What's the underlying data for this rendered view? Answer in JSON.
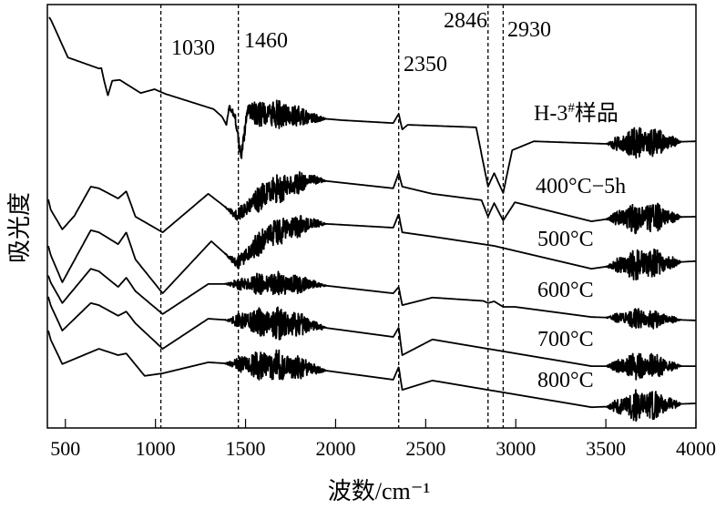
{
  "chart_data": {
    "type": "line",
    "title": "",
    "xlabel": "波数/cm⁻¹",
    "ylabel": "吸光度",
    "xlim": [
      400,
      4000
    ],
    "ylim": [
      0,
      100
    ],
    "xticks": [
      500,
      1000,
      1500,
      2000,
      2500,
      3000,
      3500,
      4000
    ],
    "xtick_labels": [
      "500",
      "1000",
      "1500",
      "2000",
      "2500",
      "3000",
      "3500",
      "4000"
    ],
    "grid": false,
    "reference_lines": [
      {
        "x": 1030,
        "label": "1030"
      },
      {
        "x": 1460,
        "label": "1460"
      },
      {
        "x": 2350,
        "label": "2350"
      },
      {
        "x": 2846,
        "label": "2846"
      },
      {
        "x": 2930,
        "label": "2930"
      }
    ],
    "series": [
      {
        "name": "H-3#样品",
        "label_parts": [
          "H-3",
          "#",
          "样品"
        ],
        "noise": [
          [
            1380,
            1950,
            3.5
          ],
          [
            3500,
            3920,
            4
          ]
        ],
        "points": [
          [
            410,
            97
          ],
          [
            423,
            96.1
          ],
          [
            514,
            87.5
          ],
          [
            686,
            84.9
          ],
          [
            700,
            85
          ],
          [
            715,
            82
          ],
          [
            736,
            78.5
          ],
          [
            760,
            82
          ],
          [
            802,
            82.2
          ],
          [
            918,
            79.1
          ],
          [
            995,
            80.0
          ],
          [
            1055,
            78.9
          ],
          [
            1323,
            75.3
          ],
          [
            1370,
            73.5
          ],
          [
            1394,
            71.6
          ],
          [
            1409,
            75.9
          ],
          [
            1440,
            74
          ],
          [
            1475,
            63.9
          ],
          [
            1510,
            74.6
          ],
          [
            2031,
            72.7
          ],
          [
            2320,
            72.0
          ],
          [
            2350,
            74.2
          ],
          [
            2370,
            70.5
          ],
          [
            2400,
            71.6
          ],
          [
            2780,
            71.0
          ],
          [
            2846,
            57.0
          ],
          [
            2880,
            60.2
          ],
          [
            2930,
            55.5
          ],
          [
            2980,
            65.6
          ],
          [
            3100,
            67.7
          ],
          [
            3500,
            67.1
          ],
          [
            4000,
            67.7
          ]
        ]
      },
      {
        "name": "400°C−5h",
        "noise": [
          [
            1380,
            1950,
            3.5
          ],
          [
            3500,
            3920,
            4
          ]
        ],
        "points": [
          [
            405,
            54
          ],
          [
            418,
            51.6
          ],
          [
            483,
            46.9
          ],
          [
            550,
            50.1
          ],
          [
            641,
            57.0
          ],
          [
            686,
            56.6
          ],
          [
            793,
            54.2
          ],
          [
            838,
            55.9
          ],
          [
            889,
            49.9
          ],
          [
            1040,
            46.2
          ],
          [
            1293,
            55.3
          ],
          [
            1451,
            50.1
          ],
          [
            1628,
            55.9
          ],
          [
            1866,
            58.7
          ],
          [
            2320,
            56.6
          ],
          [
            2350,
            60.2
          ],
          [
            2370,
            57.0
          ],
          [
            2537,
            55.3
          ],
          [
            2810,
            53.8
          ],
          [
            2846,
            49.9
          ],
          [
            2880,
            53.1
          ],
          [
            2930,
            49.0
          ],
          [
            2995,
            53.3
          ],
          [
            3420,
            48.8
          ],
          [
            3535,
            49.5
          ],
          [
            4000,
            49.9
          ]
        ]
      },
      {
        "name": "500°C",
        "noise": [
          [
            1380,
            1950,
            3.5
          ],
          [
            3500,
            3920,
            4
          ]
        ],
        "points": [
          [
            405,
            43
          ],
          [
            418,
            40.9
          ],
          [
            483,
            34.4
          ],
          [
            641,
            46.7
          ],
          [
            686,
            46.2
          ],
          [
            793,
            43.4
          ],
          [
            838,
            46.2
          ],
          [
            889,
            39.8
          ],
          [
            1040,
            31.8
          ],
          [
            1310,
            44.1
          ],
          [
            1451,
            38.7
          ],
          [
            1628,
            45.8
          ],
          [
            1866,
            48.4
          ],
          [
            2320,
            47.3
          ],
          [
            2350,
            50.5
          ],
          [
            2370,
            46.2
          ],
          [
            2537,
            45.2
          ],
          [
            2880,
            43.0
          ],
          [
            3420,
            37.6
          ],
          [
            3535,
            38.3
          ],
          [
            4000,
            39.4
          ]
        ]
      },
      {
        "name": "600°C",
        "noise": [
          [
            1380,
            1950,
            3
          ],
          [
            3500,
            3920,
            2.5
          ]
        ],
        "points": [
          [
            405,
            36
          ],
          [
            418,
            34.4
          ],
          [
            483,
            29.5
          ],
          [
            641,
            37.6
          ],
          [
            686,
            37
          ],
          [
            793,
            33.3
          ],
          [
            838,
            35.5
          ],
          [
            889,
            32.3
          ],
          [
            1040,
            26.9
          ],
          [
            1293,
            34.0
          ],
          [
            1866,
            34.0
          ],
          [
            2320,
            31.8
          ],
          [
            2350,
            33.3
          ],
          [
            2370,
            29.0
          ],
          [
            2537,
            30.8
          ],
          [
            2820,
            30
          ],
          [
            2846,
            29.5
          ],
          [
            2880,
            29.9
          ],
          [
            2930,
            28.6
          ],
          [
            2995,
            28.6
          ],
          [
            3420,
            26.2
          ],
          [
            4000,
            25.4
          ]
        ]
      },
      {
        "name": "700°C",
        "noise": [
          [
            1380,
            1950,
            4
          ],
          [
            3500,
            3920,
            3.5
          ]
        ],
        "points": [
          [
            405,
            31
          ],
          [
            418,
            29.0
          ],
          [
            483,
            23.0
          ],
          [
            641,
            29.5
          ],
          [
            686,
            29
          ],
          [
            793,
            26.5
          ],
          [
            838,
            27.5
          ],
          [
            889,
            24.7
          ],
          [
            1040,
            18.7
          ],
          [
            1293,
            25.8
          ],
          [
            1866,
            24.1
          ],
          [
            2320,
            21.5
          ],
          [
            2350,
            23.7
          ],
          [
            2370,
            17.2
          ],
          [
            2537,
            20.9
          ],
          [
            3420,
            14.6
          ],
          [
            4000,
            14.6
          ]
        ]
      },
      {
        "name": "800°C",
        "noise": [
          [
            1380,
            1950,
            4
          ],
          [
            3500,
            3920,
            4
          ]
        ],
        "points": [
          [
            405,
            23
          ],
          [
            418,
            20.9
          ],
          [
            483,
            15.1
          ],
          [
            686,
            18.7
          ],
          [
            793,
            17.2
          ],
          [
            838,
            17.6
          ],
          [
            940,
            12.3
          ],
          [
            1040,
            12.9
          ],
          [
            1293,
            15.5
          ],
          [
            1866,
            14.0
          ],
          [
            2320,
            11.4
          ],
          [
            2350,
            14.4
          ],
          [
            2370,
            9.0
          ],
          [
            2537,
            11.2
          ],
          [
            3420,
            4.9
          ],
          [
            4000,
            5.8
          ]
        ]
      }
    ]
  }
}
